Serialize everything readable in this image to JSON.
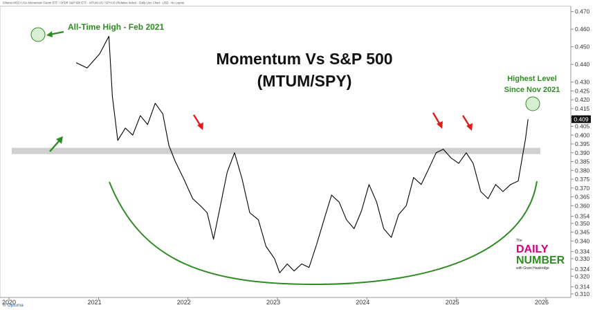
{
  "header_text": "iShares MSCI USA Momentum Factor ETF / SPDR S&P 500 ETF - MTUM.US / SPY.US (Relative Index) - Daily Line Chart - USD - No Layout",
  "watermark": "© Optuma",
  "logo": {
    "the": "The",
    "line1": "DAILY",
    "line2": "NUMBER",
    "byline": "with Grant Hawkridge"
  },
  "colors": {
    "line": "#000000",
    "green": "#2e8b22",
    "red": "#e01b1b",
    "band": "#c8c8c8"
  },
  "annotations": {
    "ath_label": "All-Time High - Feb 2021",
    "highest_label_1": "Highest Level",
    "highest_label_2": "Since Nov 2021"
  },
  "chart_data": {
    "type": "line",
    "title": "Momentum Vs S&P 500",
    "subtitle": "(MTUM/SPY)",
    "series": [],
    "x": [
      "2020-10-01",
      "2020-11-15",
      "2021-01-05",
      "2021-02-12",
      "2021-02-26",
      "2021-03-20",
      "2021-04-20",
      "2021-05-20",
      "2021-06-20",
      "2021-07-20",
      "2021-08-20",
      "2021-09-20",
      "2021-10-15",
      "2021-11-10",
      "2021-12-15",
      "2022-01-20",
      "2022-02-20",
      "2022-03-20",
      "2022-04-15",
      "2022-05-10",
      "2022-06-10",
      "2022-07-10",
      "2022-08-10",
      "2022-09-10",
      "2022-10-15",
      "2022-11-15",
      "2022-12-20",
      "2023-01-10",
      "2023-02-10",
      "2023-03-10",
      "2023-04-10",
      "2023-05-10",
      "2023-06-10",
      "2023-07-10",
      "2023-08-10",
      "2023-09-10",
      "2023-10-10",
      "2023-11-10",
      "2023-12-10",
      "2024-01-10",
      "2024-02-10",
      "2024-03-10",
      "2024-04-10",
      "2024-05-10",
      "2024-06-10",
      "2024-07-10",
      "2024-08-10",
      "2024-09-10",
      "2024-10-10",
      "2024-11-08",
      "2024-12-10",
      "2025-01-10",
      "2025-02-10",
      "2025-03-10",
      "2025-04-10",
      "2025-05-10",
      "2025-06-10",
      "2025-07-10",
      "2025-08-10",
      "2025-09-10",
      "2025-10-10",
      "2025-10-20"
    ],
    "y": [
      0.441,
      0.438,
      0.446,
      0.456,
      0.422,
      0.397,
      0.404,
      0.4,
      0.411,
      0.406,
      0.418,
      0.412,
      0.394,
      0.385,
      0.375,
      0.364,
      0.36,
      0.356,
      0.341,
      0.358,
      0.379,
      0.39,
      0.375,
      0.356,
      0.352,
      0.337,
      0.33,
      0.322,
      0.327,
      0.323,
      0.327,
      0.325,
      0.338,
      0.352,
      0.366,
      0.362,
      0.352,
      0.347,
      0.357,
      0.372,
      0.362,
      0.347,
      0.342,
      0.355,
      0.36,
      0.376,
      0.372,
      0.381,
      0.39,
      0.392,
      0.387,
      0.384,
      0.39,
      0.384,
      0.368,
      0.364,
      0.372,
      0.368,
      0.372,
      0.374,
      0.398,
      0.409
    ],
    "x_ticks": [
      "2020",
      "2021",
      "2022",
      "2023",
      "2024",
      "2025",
      "2026"
    ],
    "y_ticks": [
      "0.470",
      "0.460",
      "0.450",
      "0.440",
      "0.430",
      "0.425",
      "0.420",
      "0.415",
      "0.410",
      "0.405",
      "0.400",
      "0.395",
      "0.390",
      "0.385",
      "0.380",
      "0.375",
      "0.370",
      "0.365",
      "0.360",
      "0.354",
      "0.350",
      "0.345",
      "0.340",
      "0.334",
      "0.330",
      "0.324",
      "0.320",
      "0.314",
      "0.310"
    ],
    "last_value_label": "0.409",
    "support_level": 0.391,
    "ylim": [
      0.308,
      0.473
    ],
    "xlabel": "",
    "ylabel": "",
    "grid": false,
    "legend": "none"
  }
}
